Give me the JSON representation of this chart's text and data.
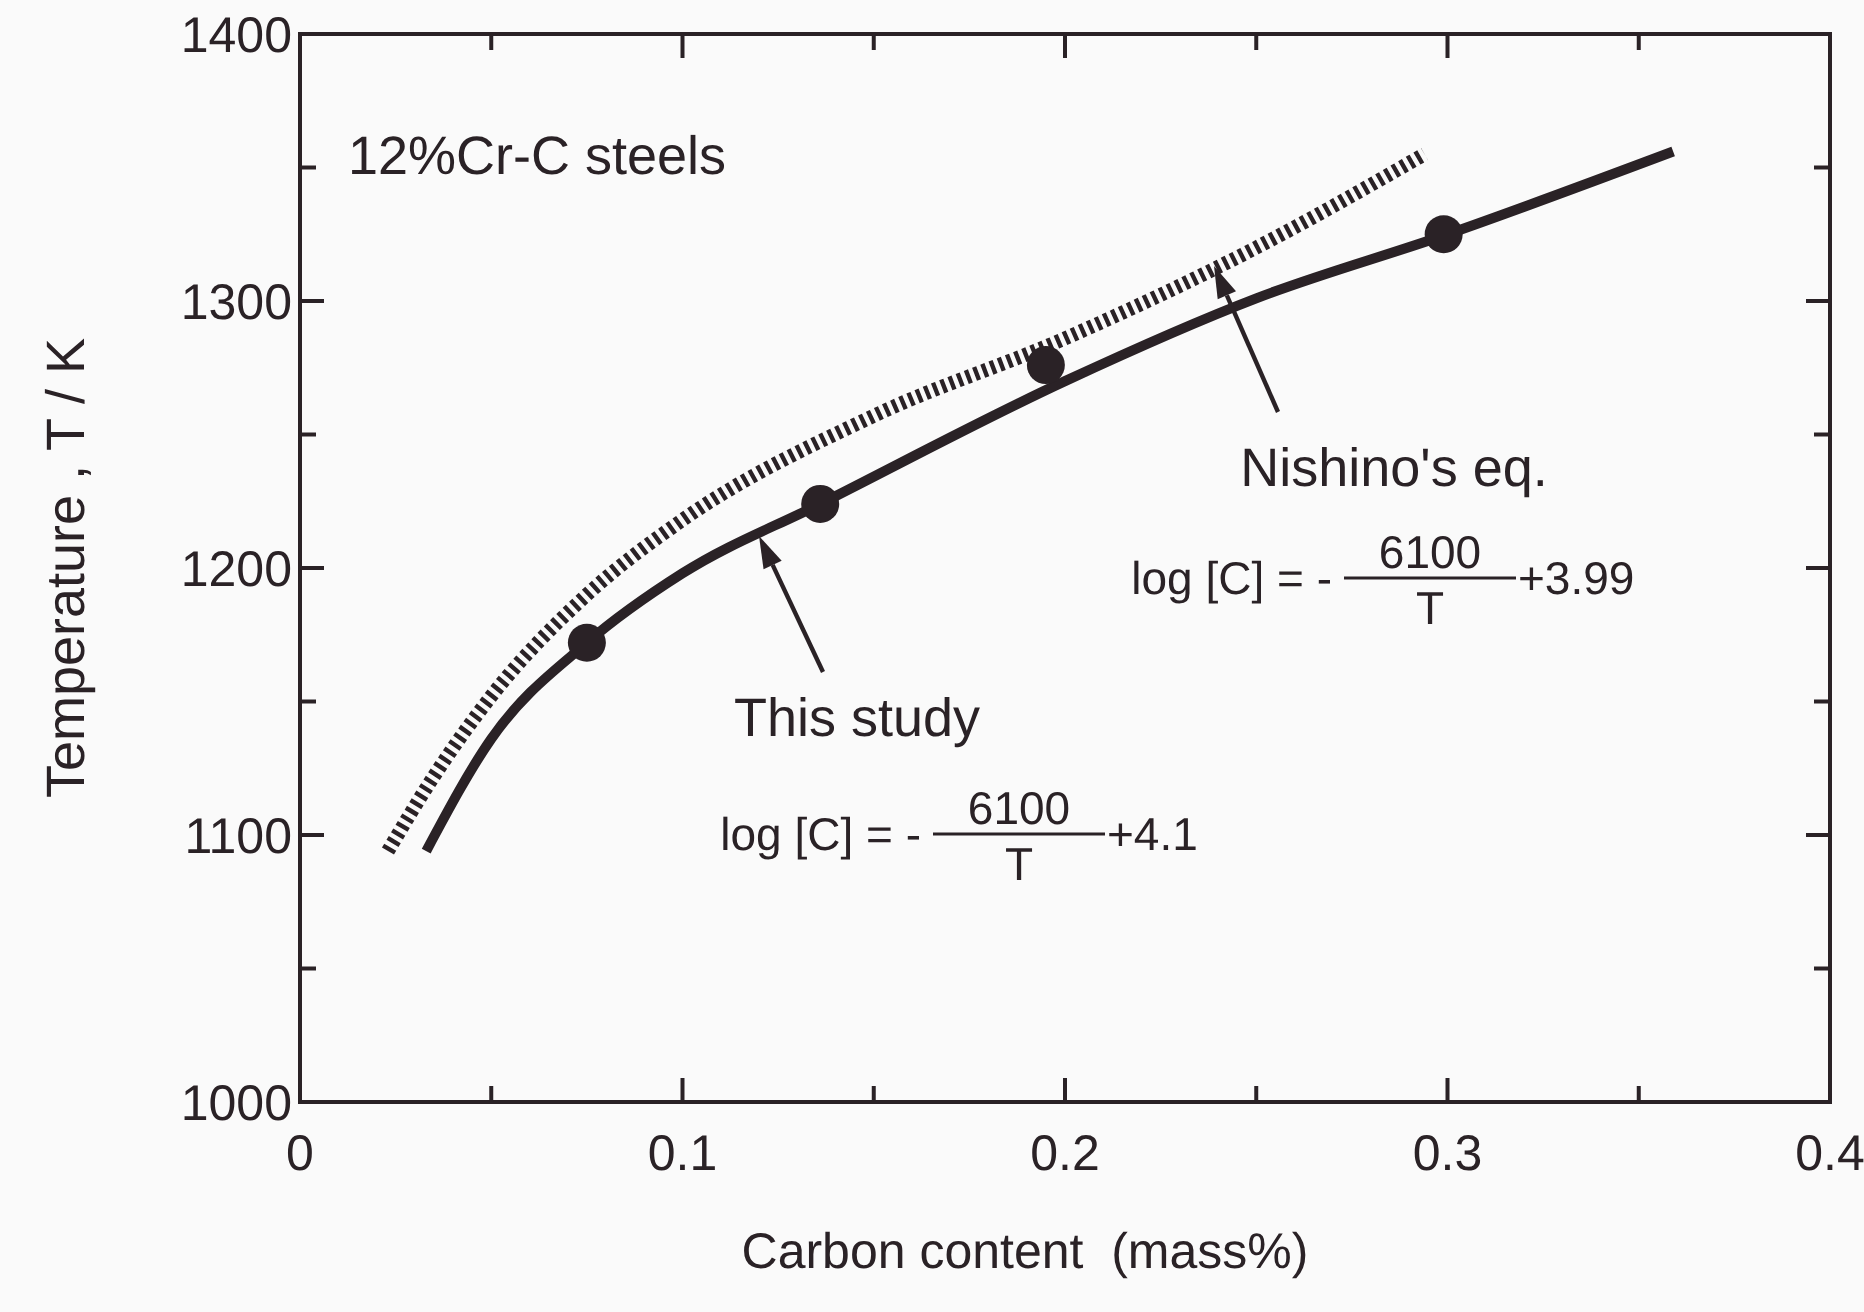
{
  "chart_data": {
    "type": "line",
    "xlabel": "Carbon content  (mass%)",
    "ylabel": "Temperature , T / K",
    "xlim": [
      0,
      0.4
    ],
    "xticks": [
      0,
      0.1,
      0.2,
      0.3,
      0.4,
      {
        "value": 0.05,
        "label": null
      },
      {
        "value": 0.15,
        "label": null
      },
      {
        "value": 0.25,
        "label": null
      },
      {
        "value": 0.35,
        "label": null
      }
    ],
    "ylim": [
      1000,
      1400
    ],
    "yticks": [
      1000,
      1100,
      1200,
      1300,
      1400,
      {
        "value": 1050,
        "label": null
      },
      {
        "value": 1150,
        "label": null
      },
      {
        "value": 1250,
        "label": null
      },
      {
        "value": 1350,
        "label": null
      }
    ],
    "grid": false,
    "series": [
      {
        "color": "#2a2226",
        "line_style": "dashed",
        "marker": "none",
        "x": [
          0.023,
          0.035,
          0.05,
          0.075,
          0.1,
          0.15,
          0.2,
          0.25,
          0.294
        ],
        "values": [
          1094,
          1122,
          1152,
          1190,
          1218,
          1257,
          1286,
          1320,
          1355
        ]
      },
      {
        "color": "#2a2226",
        "line_style": "solid",
        "marker": "none",
        "x": [
          0.033,
          0.05,
          0.075,
          0.1,
          0.136,
          0.2,
          0.25,
          0.3,
          0.359
        ],
        "values": [
          1094,
          1136,
          1172,
          1198,
          1224,
          1270,
          1301,
          1325,
          1356
        ]
      },
      {
        "type": "scatter",
        "color": "#2a2226",
        "marker": "circle",
        "x": [
          0.075,
          0.136,
          0.195,
          0.299
        ],
        "values": [
          1172,
          1224,
          1276,
          1325
        ]
      }
    ],
    "annotations": [
      "12%Cr-C steels",
      "Nishino's eq.",
      "log [C] = -",
      "6100",
      "T",
      "+3.99",
      {
        "text": "This study",
        "x": 0.12,
        "y": 1212
      },
      "log [C] = -",
      "6100",
      "T",
      "+4.1"
    ]
  }
}
